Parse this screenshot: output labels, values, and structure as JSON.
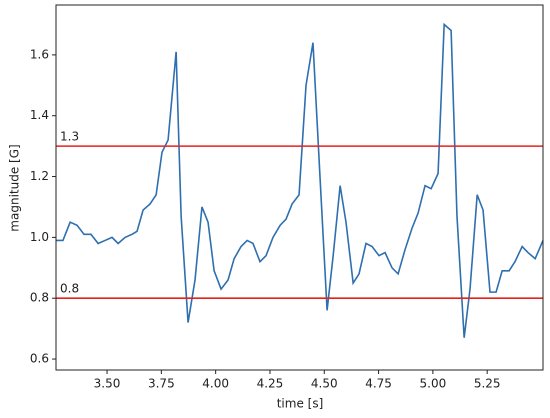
{
  "chart_data": {
    "type": "line",
    "xlabel": "time [s]",
    "ylabel": "magnitude [G]",
    "x": [
      3.265,
      3.297,
      3.33,
      3.362,
      3.394,
      3.426,
      3.459,
      3.491,
      3.523,
      3.551,
      3.583,
      3.615,
      3.638,
      3.666,
      3.698,
      3.726,
      3.753,
      3.781,
      3.818,
      3.841,
      3.873,
      3.905,
      3.937,
      3.965,
      3.993,
      4.025,
      4.057,
      4.085,
      4.117,
      4.145,
      4.172,
      4.204,
      4.232,
      4.264,
      4.297,
      4.324,
      4.352,
      4.384,
      4.416,
      4.448,
      4.481,
      4.513,
      4.541,
      4.573,
      4.6,
      4.633,
      4.66,
      4.692,
      4.72,
      4.752,
      4.78,
      4.812,
      4.84,
      4.872,
      4.904,
      4.932,
      4.964,
      4.992,
      5.024,
      5.052,
      5.084,
      5.111,
      5.144,
      5.171,
      5.204,
      5.231,
      5.263,
      5.291,
      5.319,
      5.351,
      5.378,
      5.411,
      5.438,
      5.471,
      5.507
    ],
    "series": [
      {
        "color": "#2e6fb0",
        "values": [
          0.99,
          0.99,
          1.05,
          1.04,
          1.01,
          1.01,
          0.98,
          0.99,
          1.0,
          0.98,
          1.0,
          1.01,
          1.02,
          1.09,
          1.11,
          1.14,
          1.28,
          1.32,
          1.61,
          1.07,
          0.72,
          0.86,
          1.1,
          1.05,
          0.89,
          0.83,
          0.86,
          0.93,
          0.97,
          0.99,
          0.98,
          0.92,
          0.94,
          1.0,
          1.04,
          1.06,
          1.11,
          1.14,
          1.5,
          1.64,
          1.19,
          0.76,
          0.94,
          1.17,
          1.05,
          0.85,
          0.88,
          0.98,
          0.97,
          0.94,
          0.95,
          0.9,
          0.88,
          0.96,
          1.03,
          1.08,
          1.17,
          1.16,
          1.21,
          1.7,
          1.68,
          1.07,
          0.67,
          0.83,
          1.14,
          1.09,
          0.82,
          0.82,
          0.89,
          0.89,
          0.92,
          0.97,
          0.95,
          0.93,
          0.99
        ]
      }
    ],
    "xlim": [
      3.265,
      5.507
    ],
    "ylim": [
      0.564,
      1.764
    ],
    "xticks": [
      {
        "value": 3.5,
        "label": "3.50"
      },
      {
        "value": 3.75,
        "label": "3.75"
      },
      {
        "value": 4,
        "label": "4.00"
      },
      {
        "value": 4.25,
        "label": "4.25"
      },
      {
        "value": 4.5,
        "label": "4.50"
      },
      {
        "value": 4.75,
        "label": "4.75"
      },
      {
        "value": 5,
        "label": "5.00"
      },
      {
        "value": 5.25,
        "label": "5.25"
      }
    ],
    "yticks": [
      0.6,
      0.8,
      {
        "value": 1,
        "label": "1.0"
      },
      1.2,
      1.4,
      1.6
    ],
    "hlines": [
      1.3,
      0.8
    ],
    "hline_color": "#e8211c"
  }
}
